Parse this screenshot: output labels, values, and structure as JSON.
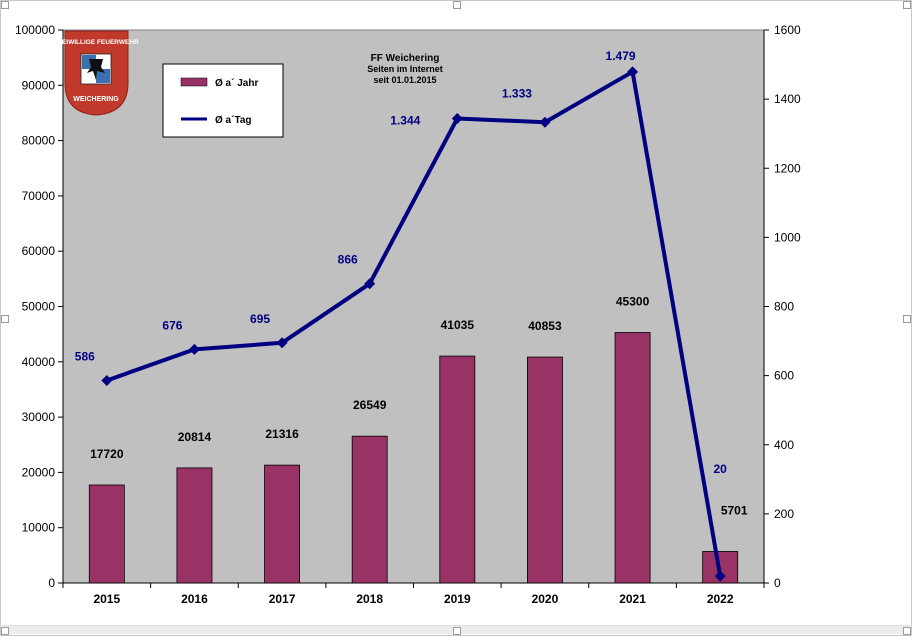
{
  "chart_data": {
    "type": "bar+line",
    "title": "FF Weichering",
    "subtitle_lines": [
      "Seiten im Internet",
      "seit 01.01.2015"
    ],
    "categories": [
      "2015",
      "2016",
      "2017",
      "2018",
      "2019",
      "2020",
      "2021",
      "2022"
    ],
    "series": [
      {
        "name": "Ø a´ Jahr",
        "type": "bar",
        "axis": "left",
        "color": "#993366",
        "values": [
          17720,
          20814,
          21316,
          26549,
          41035,
          40853,
          45300,
          5701
        ],
        "labels": [
          "17720",
          "20814",
          "21316",
          "26549",
          "41035",
          "40853",
          "45300",
          "5701"
        ]
      },
      {
        "name": "Ø a´Tag",
        "type": "line",
        "axis": "right",
        "color": "#000080",
        "values": [
          586,
          676,
          695,
          866,
          1344,
          1333,
          1479,
          20
        ],
        "labels": [
          "586",
          "676",
          "695",
          "866",
          "1.344",
          "1.333",
          "1.479",
          "20"
        ]
      }
    ],
    "y_left": {
      "min": 0,
      "max": 100000,
      "ticks": [
        0,
        10000,
        20000,
        30000,
        40000,
        50000,
        60000,
        70000,
        80000,
        90000,
        100000
      ],
      "tick_labels": [
        "0",
        "10000",
        "20000",
        "30000",
        "40000",
        "50000",
        "60000",
        "70000",
        "80000",
        "90000",
        "100000"
      ]
    },
    "y_right": {
      "min": 0,
      "max": 1600,
      "ticks": [
        0,
        200,
        400,
        600,
        800,
        1000,
        1200,
        1400,
        1600
      ],
      "tick_labels": [
        "0",
        "200",
        "400",
        "600",
        "800",
        "1000",
        "1200",
        "1400",
        "1600"
      ]
    },
    "grid": false,
    "plot_background": "#c0c0c0",
    "legend_position": "top-left",
    "logo": {
      "text_top": "FREIWILLIGE FEUERWEHR",
      "text_bottom": "WEICHERING",
      "color": "#c0392b"
    }
  }
}
